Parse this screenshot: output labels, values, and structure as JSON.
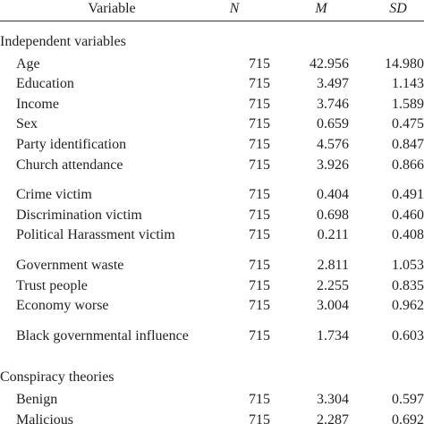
{
  "header": {
    "columns": [
      "Variable",
      "N",
      "M",
      "SD"
    ]
  },
  "sections": [
    {
      "title": "Independent variables",
      "groups": [
        [
          [
            "Age",
            "715",
            "42.956",
            "14.980"
          ],
          [
            "Education",
            "715",
            "3.497",
            "1.143"
          ],
          [
            "Income",
            "715",
            "3.746",
            "1.589"
          ],
          [
            "Sex",
            "715",
            "0.659",
            "0.475"
          ],
          [
            "Party identification",
            "715",
            "4.576",
            "0.847"
          ],
          [
            "Church attendance",
            "715",
            "3.926",
            "0.866"
          ]
        ],
        [
          [
            "Crime victim",
            "715",
            "0.404",
            "0.491"
          ],
          [
            "Discrimination victim",
            "715",
            "0.698",
            "0.460"
          ],
          [
            "Political Harassment victim",
            "715",
            "0.211",
            "0.408"
          ]
        ],
        [
          [
            "Government waste",
            "715",
            "2.811",
            "1.053"
          ],
          [
            "Trust people",
            "715",
            "2.255",
            "0.835"
          ],
          [
            "Economy worse",
            "715",
            "3.004",
            "0.962"
          ]
        ],
        [
          [
            "Black governmental influence",
            "715",
            "1.734",
            "0.603"
          ]
        ]
      ]
    },
    {
      "title": "Conspiracy theories",
      "groups": [
        [
          [
            "Benign",
            "715",
            "3.304",
            "0.597"
          ],
          [
            "Malicious",
            "715",
            "2.287",
            "0.692"
          ]
        ]
      ]
    }
  ]
}
